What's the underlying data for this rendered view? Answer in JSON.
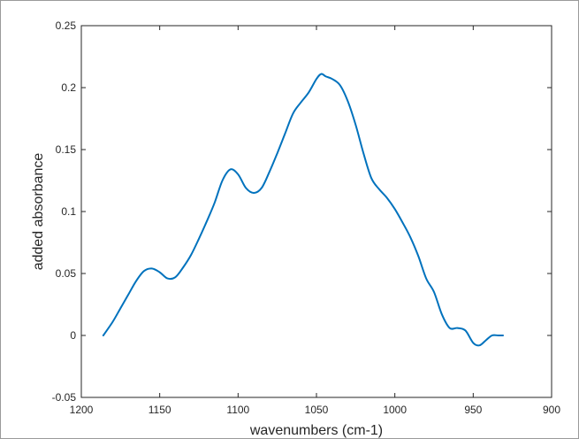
{
  "chart_data": {
    "type": "line",
    "title": "",
    "xlabel": "wavenumbers (cm-1)",
    "ylabel": "added absorbance",
    "xlim": [
      1200,
      900
    ],
    "ylim": [
      -0.05,
      0.25
    ],
    "x_reversed": true,
    "grid": false,
    "legend": "none",
    "line_color": "#0072BD",
    "xticks": [
      "1200",
      "1150",
      "1100",
      "1050",
      "1000",
      "950",
      "900"
    ],
    "yticks": [
      "-0.05",
      "0",
      "0.05",
      "0.1",
      "0.15",
      "0.2",
      "0.25"
    ],
    "series": [
      {
        "x": [
          1186,
          1180,
          1175,
          1170,
          1165,
          1160,
          1155,
          1150,
          1145,
          1140,
          1135,
          1130,
          1125,
          1120,
          1115,
          1110,
          1105,
          1100,
          1095,
          1090,
          1085,
          1080,
          1075,
          1070,
          1065,
          1060,
          1055,
          1050,
          1047,
          1044,
          1040,
          1035,
          1030,
          1025,
          1020,
          1015,
          1010,
          1005,
          1000,
          995,
          990,
          985,
          980,
          975,
          970,
          965,
          960,
          955,
          950,
          946,
          942,
          938,
          934,
          931
        ],
        "values": [
          0.0,
          0.011,
          0.022,
          0.033,
          0.044,
          0.052,
          0.054,
          0.051,
          0.046,
          0.047,
          0.055,
          0.065,
          0.078,
          0.092,
          0.107,
          0.125,
          0.134,
          0.13,
          0.119,
          0.115,
          0.119,
          0.132,
          0.147,
          0.163,
          0.179,
          0.188,
          0.196,
          0.207,
          0.211,
          0.209,
          0.207,
          0.202,
          0.189,
          0.17,
          0.147,
          0.127,
          0.118,
          0.111,
          0.102,
          0.091,
          0.079,
          0.064,
          0.046,
          0.035,
          0.017,
          0.006,
          0.006,
          0.004,
          -0.006,
          -0.008,
          -0.004,
          0.0,
          0.0,
          0.0
        ]
      }
    ]
  }
}
